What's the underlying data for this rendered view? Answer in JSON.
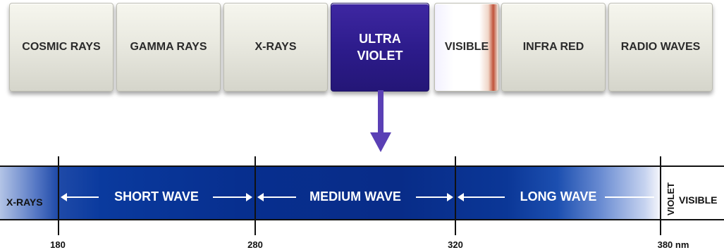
{
  "spectrum_blocks": [
    {
      "label": "COSMIC RAYS",
      "lines": [
        "COSMIC RAYS"
      ],
      "highlight": false
    },
    {
      "label": "GAMMA RAYS",
      "lines": [
        "GAMMA RAYS"
      ],
      "highlight": false
    },
    {
      "label": "X-RAYS",
      "lines": [
        "X-RAYS"
      ],
      "highlight": false
    },
    {
      "label": "ULTRA VIOLET",
      "lines": [
        "ULTRA",
        "VIOLET"
      ],
      "highlight": true
    },
    {
      "label": "VISIBLE",
      "lines": [
        "VISIBLE"
      ],
      "highlight": false
    },
    {
      "label": "INFRA RED",
      "lines": [
        "INFRA RED"
      ],
      "highlight": false
    },
    {
      "label": "RADIO WAVES",
      "lines": [
        "RADIO WAVES"
      ],
      "highlight": false
    }
  ],
  "uv_band": {
    "left_label": "X-RAYS",
    "right_rotated_label": "VIOLET",
    "right_label": "VISIBLE",
    "regions": [
      {
        "label": "SHORT WAVE"
      },
      {
        "label": "MEDIUM WAVE"
      },
      {
        "label": "LONG WAVE"
      }
    ],
    "ticks": [
      "180",
      "280",
      "320",
      "380 nm"
    ]
  },
  "colors": {
    "uv_highlight": "#2c1b8a",
    "arrow": "#5a3fb5",
    "band_blue": "#082c88",
    "visible_red": "#c0533a"
  }
}
